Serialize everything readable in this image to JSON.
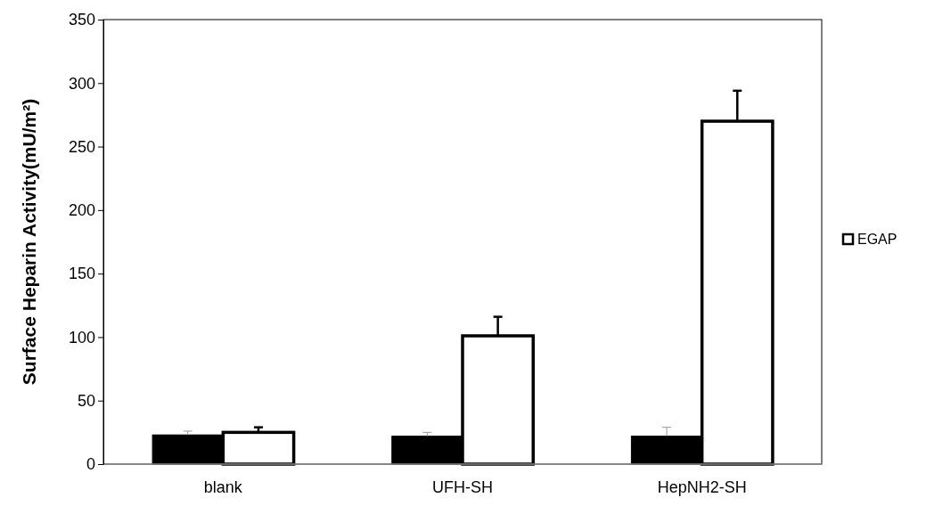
{
  "chart_data": {
    "type": "bar",
    "ylabel": "Surface Heparin Activity(mU/m²)",
    "categories": [
      "blank",
      "UFH-SH",
      "HepNH2-SH"
    ],
    "series": [
      {
        "color": "#000000",
        "values": [
          23,
          22,
          22
        ],
        "errors": [
          3,
          3,
          7
        ]
      },
      {
        "name": "EGAP",
        "color": "#ffffff",
        "values": [
          25,
          101,
          270
        ],
        "errors": [
          4,
          15,
          24
        ]
      }
    ],
    "ylim": [
      0,
      350
    ],
    "yticks": [
      0,
      50,
      100,
      150,
      200,
      250,
      300,
      350
    ],
    "grid": false,
    "legend": "right"
  }
}
